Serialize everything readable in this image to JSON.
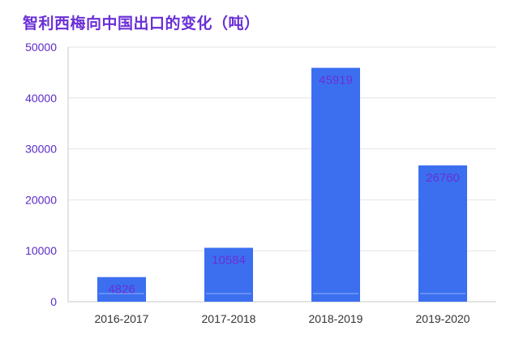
{
  "chart_data": {
    "type": "bar",
    "title": "智利西梅向中国出口的变化（吨）",
    "categories": [
      "2016-2017",
      "2017-2018",
      "2018-2019",
      "2019-2020"
    ],
    "values": [
      4826,
      10584,
      45919,
      26760
    ],
    "data_labels": [
      "4826",
      "10584",
      "45919",
      "26760"
    ],
    "y_ticks": [
      "0",
      "10000",
      "20000",
      "30000",
      "40000",
      "50000"
    ],
    "ylim": [
      0,
      50000
    ],
    "xlabel": "",
    "ylabel": "",
    "grid": true,
    "legend": "none",
    "colors": {
      "bar": "#3b6ff0",
      "title": "#6a2fd6",
      "y_tick": "#5b2bc7",
      "data_label": "#6a2fd6"
    }
  }
}
